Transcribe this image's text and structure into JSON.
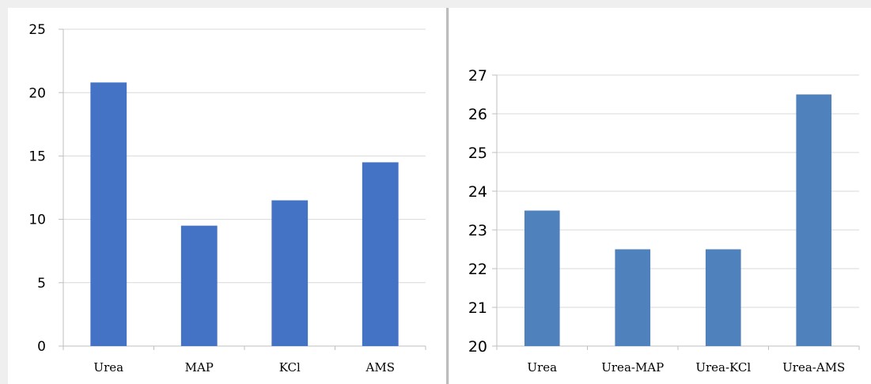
{
  "chart_data": [
    {
      "type": "bar",
      "categories": [
        "Urea",
        "MAP",
        "KCl",
        "AMS"
      ],
      "values": [
        20.8,
        9.5,
        11.5,
        14.5
      ],
      "ylim": [
        0,
        25
      ],
      "yticks": [
        0,
        5,
        10,
        15,
        20,
        25
      ],
      "grid": true,
      "bar_color": "#4472C4"
    },
    {
      "type": "bar",
      "categories": [
        "Urea",
        "Urea-MAP",
        "Urea-KCl",
        "Urea-AMS"
      ],
      "values": [
        23.5,
        22.5,
        22.5,
        26.5
      ],
      "ylim": [
        20,
        27
      ],
      "yticks": [
        20,
        21,
        22,
        23,
        24,
        25,
        26,
        27
      ],
      "grid": true,
      "bar_color": "#4F81BD"
    }
  ]
}
